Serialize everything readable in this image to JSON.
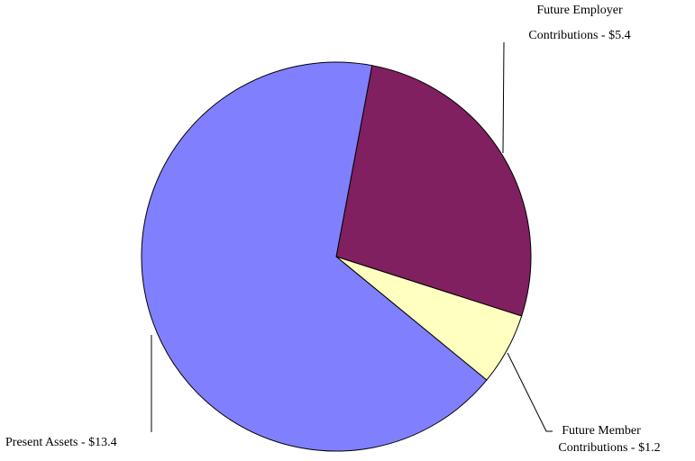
{
  "chart_data": {
    "type": "pie",
    "values": [
      5.4,
      1.2,
      13.4
    ],
    "value_labels": [
      [
        "Future Employer",
        "Contributions - $5.4"
      ],
      [
        "Future Member",
        "Contributions - $1.2"
      ],
      [
        "Present Assets - $13.4"
      ]
    ],
    "colors": [
      "#802060",
      "#ffffc0",
      "#8080ff"
    ]
  }
}
